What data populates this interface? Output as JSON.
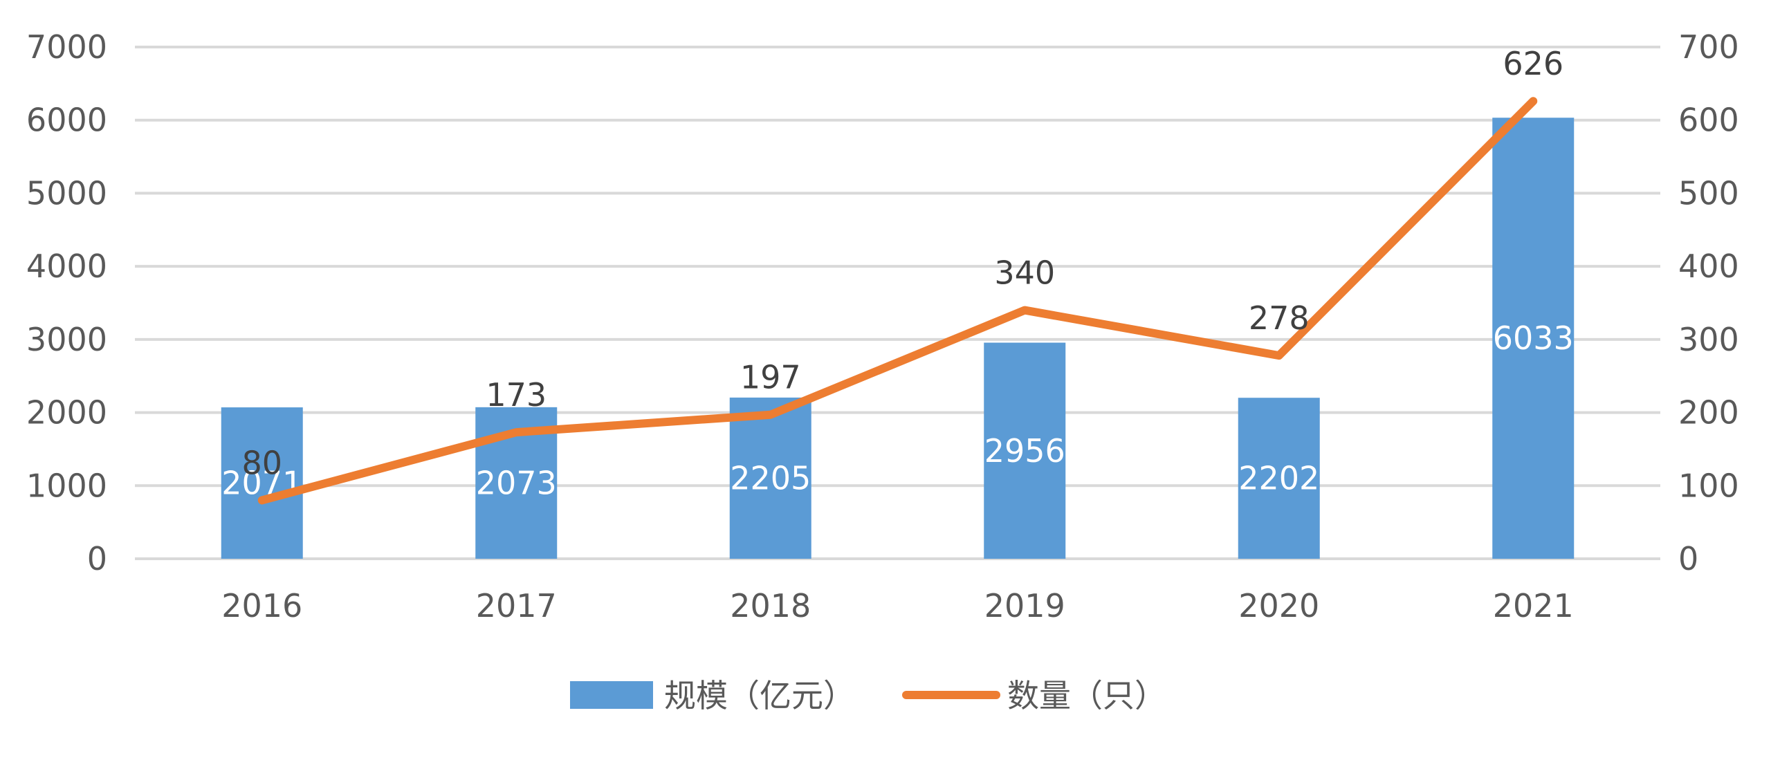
{
  "chart_data": {
    "type": "bar+line",
    "categories": [
      "2016",
      "2017",
      "2018",
      "2019",
      "2020",
      "2021"
    ],
    "series": [
      {
        "name": "规模（亿元）",
        "type": "bar",
        "axis": "left",
        "values": [
          2071,
          2073,
          2205,
          2956,
          2202,
          6033
        ],
        "color": "#5b9bd5"
      },
      {
        "name": "数量（只）",
        "type": "line",
        "axis": "right",
        "values": [
          80,
          173,
          197,
          340,
          278,
          626
        ],
        "color": "#ed7d31"
      }
    ],
    "y_left": {
      "range": [
        0,
        7000
      ],
      "ticks": [
        "0",
        "1000",
        "2000",
        "3000",
        "4000",
        "5000",
        "6000",
        "7000"
      ]
    },
    "y_right": {
      "range": [
        0,
        700
      ],
      "ticks": [
        "0",
        "100",
        "200",
        "300",
        "400",
        "500",
        "600",
        "700"
      ]
    },
    "grid": true,
    "legend_position": "bottom-center",
    "colors": {
      "grid": "#d9d9d9",
      "tick_text": "#595959",
      "bar_label": "#ffffff",
      "line_label": "#404040"
    }
  }
}
